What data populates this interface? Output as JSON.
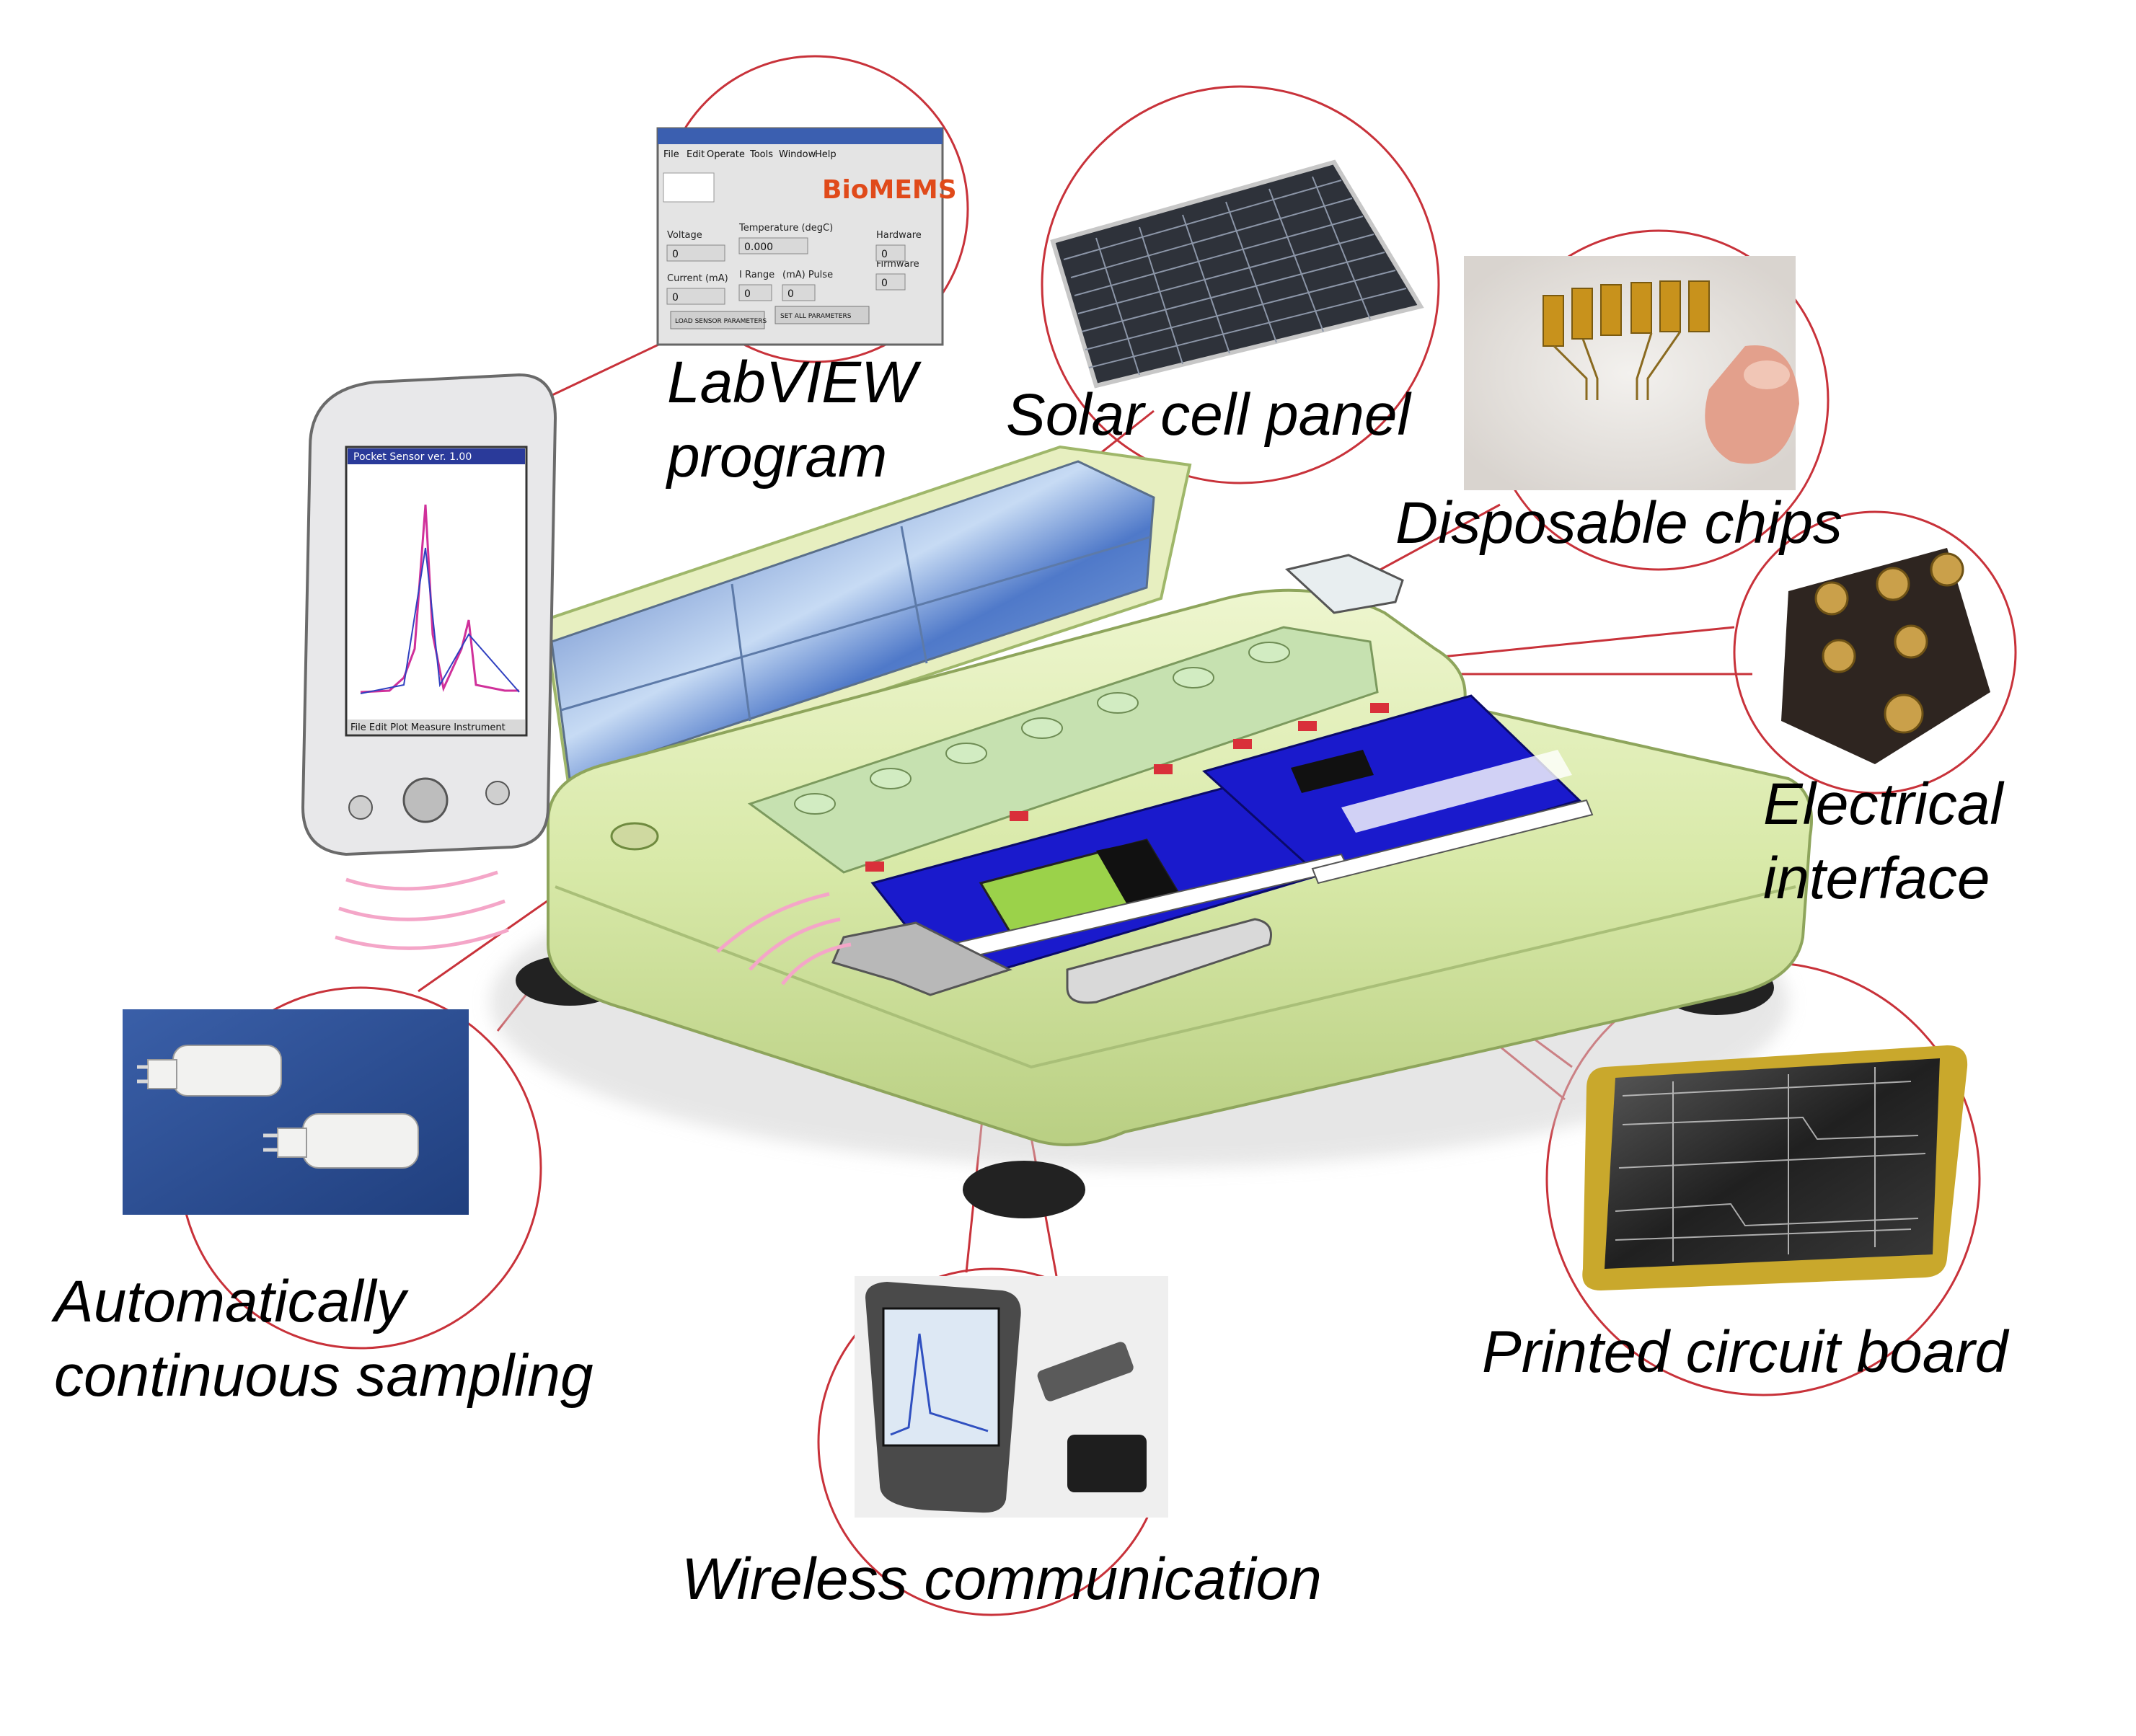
{
  "labels": {
    "labview": [
      "LabVIEW",
      "program"
    ],
    "solar": "Solar cell panel",
    "chips": "Disposable chips",
    "electrical": [
      "Electrical",
      "interface"
    ],
    "sampling": [
      "Automatically",
      "continuous sampling"
    ],
    "wireless": "Wireless communication",
    "pcb": "Printed circuit board"
  },
  "labview_window": {
    "menu": [
      "File",
      "Edit",
      "Operate",
      "Tools",
      "Window",
      "Help"
    ],
    "logo_text": "BioMEMS",
    "fields": {
      "voltage": "Voltage",
      "temperature": "Temperature (degC)",
      "current": "Current (mA)",
      "irange": "I Range",
      "pulse": "(mA) Pulse",
      "hardware": "Hardware",
      "firmware": "Firmware"
    },
    "values": {
      "voltage": "0",
      "temperature": "0.000",
      "current": "0",
      "irange": "0",
      "pulse": "0",
      "hardware": "0",
      "firmware": "0"
    },
    "buttons": [
      "LOAD SENSOR PARAMETERS",
      "SET ALL PARAMETERS"
    ]
  },
  "pda_screen": {
    "title": "Pocket Sensor ver. 1.00",
    "status_line": "File Edit Plot Measure Instrument"
  },
  "colors": {
    "device_body": "#d8e9a8",
    "device_edge": "#9fb76a",
    "callout_ring": "#c8323a",
    "panel_blue": "#1a1acc",
    "solar_glass": "#7fa6d9",
    "pink_waves": "#f4a6c8",
    "pcb_gold": "#c9a82c"
  }
}
